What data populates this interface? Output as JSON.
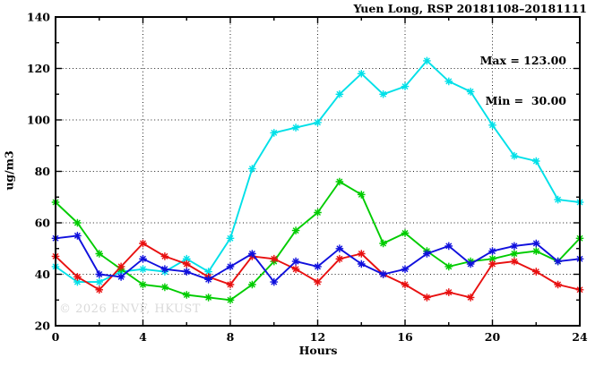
{
  "header": {
    "title": "Yuen Long, RSP 20181108–20181111"
  },
  "stats_box": {
    "max_line": "Max = 123.00",
    "min_line": "Min =  30.00"
  },
  "watermark": "© 2026 ENVF, HKUST",
  "chart_data": {
    "type": "line",
    "title": "Yuen Long, RSP 20181108–20181111",
    "xlabel": "Hours",
    "ylabel": "ug/m3",
    "xlim": [
      0,
      24
    ],
    "ylim": [
      20,
      140
    ],
    "x_major_ticks": [
      0,
      4,
      8,
      12,
      16,
      20,
      24
    ],
    "x_minor_ticks": [
      2,
      6,
      10,
      14,
      18,
      22
    ],
    "y_major_ticks": [
      20,
      40,
      60,
      80,
      100,
      120,
      140
    ],
    "y_minor_ticks": [
      30,
      50,
      70,
      90,
      110,
      130
    ],
    "grid_x": [
      4,
      8,
      12,
      16,
      20
    ],
    "grid_y": [
      40,
      60,
      80,
      100,
      120
    ],
    "grid": true,
    "legend_position": "none",
    "marker": "asterisk",
    "x": [
      0,
      1,
      2,
      3,
      4,
      5,
      6,
      7,
      8,
      9,
      10,
      11,
      12,
      13,
      14,
      15,
      16,
      17,
      18,
      19,
      20,
      21,
      22,
      23,
      24
    ],
    "series": [
      {
        "name": "line-cyan",
        "color": "#00e0e8",
        "values": [
          43,
          37,
          37,
          41,
          42,
          41,
          46,
          41,
          54,
          81,
          95,
          97,
          99,
          110,
          118,
          110,
          113,
          123,
          115,
          111,
          98,
          86,
          84,
          69,
          68
        ]
      },
      {
        "name": "line-green",
        "color": "#00cc00",
        "values": [
          68,
          60,
          48,
          42,
          36,
          35,
          32,
          31,
          30,
          36,
          45,
          57,
          64,
          76,
          71,
          52,
          56,
          49,
          43,
          45,
          46,
          48,
          49,
          45,
          54
        ]
      },
      {
        "name": "line-red",
        "color": "#e81010",
        "values": [
          47,
          39,
          34,
          43,
          52,
          47,
          44,
          39,
          36,
          47,
          46,
          42,
          37,
          46,
          48,
          40,
          36,
          31,
          33,
          31,
          44,
          45,
          41,
          36,
          34
        ]
      },
      {
        "name": "line-blue",
        "color": "#1010dd",
        "values": [
          54,
          55,
          40,
          39,
          46,
          42,
          41,
          38,
          43,
          48,
          37,
          45,
          43,
          50,
          44,
          40,
          42,
          48,
          51,
          44,
          49,
          51,
          52,
          45,
          46
        ]
      }
    ],
    "stats": {
      "max": 123.0,
      "min": 30.0
    },
    "axis_color": "#000000",
    "grid_color": "#222222"
  }
}
